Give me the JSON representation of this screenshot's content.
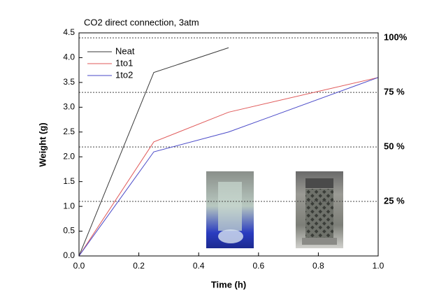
{
  "chart_data": {
    "type": "line",
    "title": "CO2 direct connection, 3atm",
    "x_label": "Time (h)",
    "y_label": "Weight (g)",
    "series": [
      {
        "name": "Neat",
        "color": "#3a3a3a",
        "x": [
          0,
          0.25,
          0.5
        ],
        "values": [
          0,
          3.7,
          4.2
        ]
      },
      {
        "name": "1to1",
        "color": "#e05a5a",
        "x": [
          0,
          0.25,
          0.5,
          1.0
        ],
        "values": [
          0,
          2.3,
          2.9,
          3.6
        ]
      },
      {
        "name": "1to2",
        "color": "#4a4ac8",
        "x": [
          0,
          0.25,
          0.5,
          1.0
        ],
        "values": [
          0,
          2.1,
          2.5,
          3.6
        ]
      }
    ],
    "xlim": [
      0,
      1.0
    ],
    "xticks": [
      {
        "value": 0,
        "label": "0.0"
      },
      0.2,
      0.4,
      0.6,
      0.8,
      {
        "value": 1,
        "label": "1.0"
      }
    ],
    "ylim": [
      0,
      4.5
    ],
    "yticks": [
      {
        "value": 0,
        "label": "0.0"
      },
      0.5,
      {
        "value": 1,
        "label": "1.0"
      },
      1.5,
      {
        "value": 2,
        "label": "2.0"
      },
      2.5,
      {
        "value": 3,
        "label": "3.0"
      },
      3.5,
      {
        "value": 4,
        "label": "4.0"
      },
      4.5
    ],
    "y2lim": [
      0,
      102.3
    ],
    "y2ticks": [
      {
        "value": 25,
        "label": "25 %"
      },
      {
        "value": 50,
        "label": "50 %"
      },
      {
        "value": 75,
        "label": "75 %"
      },
      {
        "value": 100,
        "label": "100%"
      }
    ],
    "y2grid": true,
    "legend": "upper left"
  }
}
